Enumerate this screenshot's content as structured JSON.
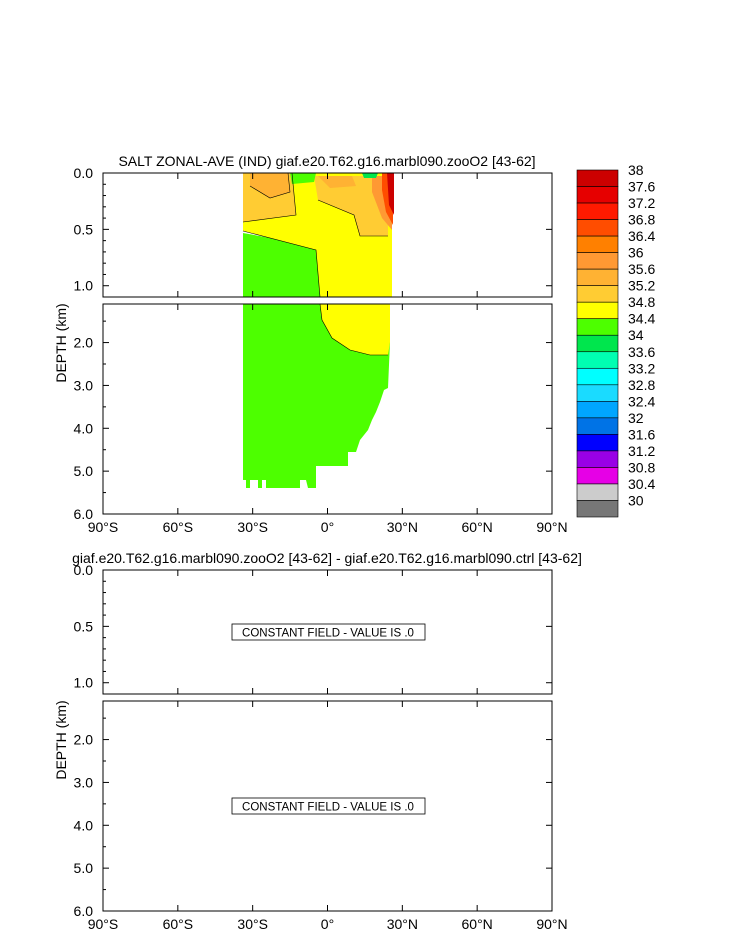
{
  "chart_data": [
    {
      "type": "heatmap",
      "title": "SALT ZONAL-AVE (IND) giaf.e20.T62.g16.marbl090.zooO2 [43-62]",
      "ylabel": "DEPTH (km)",
      "xlim": [
        -90,
        90
      ],
      "ylim_upper_km": [
        0.0,
        1.1
      ],
      "ylim_lower_km": [
        1.1,
        6.0
      ],
      "x_ticks": [
        "90°S",
        "60°S",
        "30°S",
        "0°",
        "30°N",
        "60°N",
        "90°N"
      ],
      "y_ticks_upper": [
        "0.0",
        "0.5",
        "1.0"
      ],
      "y_ticks_lower": [
        "2.0",
        "3.0",
        "4.0",
        "5.0",
        "6.0"
      ],
      "colorbar": {
        "labels": [
          "38",
          "37.6",
          "37.2",
          "36.8",
          "36.4",
          "36",
          "35.6",
          "35.2",
          "34.8",
          "34.4",
          "34",
          "33.6",
          "33.2",
          "32.8",
          "32.4",
          "32",
          "31.6",
          "31.2",
          "30.8",
          "30.4",
          "30"
        ],
        "colors": [
          "#cc0000",
          "#e60000",
          "#ff1a00",
          "#ff4d00",
          "#ff8000",
          "#ff9933",
          "#ffb233",
          "#ffcc33",
          "#ffff00",
          "#4dff00",
          "#00e64d",
          "#00ffb2",
          "#00ffff",
          "#1adbff",
          "#00a6ff",
          "#0073e6",
          "#0000ff",
          "#9900e6",
          "#e600e6",
          "#cccccc",
          "#777777"
        ]
      },
      "fields": {
        "ocean_extent_lat": [
          -34,
          25
        ],
        "bottom_depth_km": 5.4,
        "regions": [
          {
            "range": "34.4-34.8",
            "color": "#4dff00",
            "location": "south of ~0°, below ~0.5 km; all latitudes below ~2.3 km"
          },
          {
            "range": "34.8-35.2",
            "color": "#ffff00",
            "location": "upper ocean 0.3-2.3 km, north of ~0°"
          },
          {
            "range": "35.2-35.6",
            "color": "#ffcc33",
            "location": "near surface 30°S-20°S and 5°N-25°N"
          },
          {
            "range": "35.6-36.0",
            "color": "#ffb233",
            "location": "surface core near 30°S"
          },
          {
            "range": "36.0-37.6",
            "color": "#ff4d00",
            "location": "northern boundary near 25°N, 0-0.4 km"
          }
        ]
      }
    },
    {
      "type": "heatmap",
      "title": "giaf.e20.T62.g16.marbl090.zooO2 [43-62] - giaf.e20.T62.g16.marbl090.ctrl [43-62]",
      "ylabel": "DEPTH (km)",
      "xlim": [
        -90,
        90
      ],
      "x_ticks": [
        "90°S",
        "60°S",
        "30°S",
        "0°",
        "30°N",
        "60°N",
        "90°N"
      ],
      "y_ticks_upper": [
        "0.0",
        "0.5",
        "1.0"
      ],
      "y_ticks_lower": [
        "2.0",
        "3.0",
        "4.0",
        "5.0",
        "6.0"
      ],
      "annotation_upper": "CONSTANT FIELD - VALUE IS .0",
      "annotation_lower": "CONSTANT FIELD - VALUE IS .0"
    }
  ]
}
